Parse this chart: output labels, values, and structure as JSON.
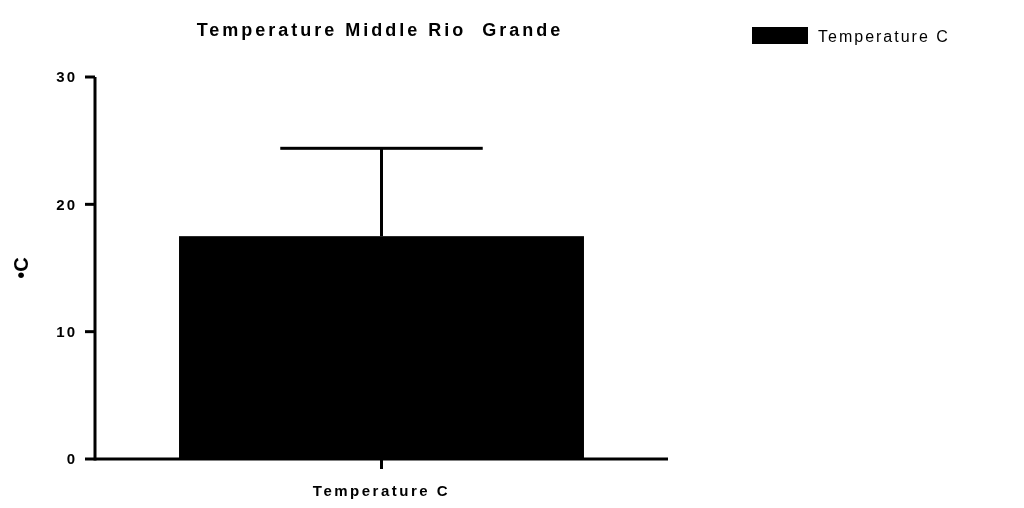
{
  "chart_data": {
    "type": "bar",
    "title": "Temperature Middle Rio  Grande",
    "ylabel": "•C",
    "categories": [
      "Temperature C"
    ],
    "series": [
      {
        "name": "Temperature C",
        "color": "#000000",
        "values": [
          17.5
        ],
        "errors": [
          [
            17.5,
            24.4
          ]
        ]
      }
    ],
    "ylim": [
      0,
      30
    ],
    "yticks": [
      0,
      10,
      20,
      30
    ],
    "grid": false,
    "legend": "top right"
  }
}
